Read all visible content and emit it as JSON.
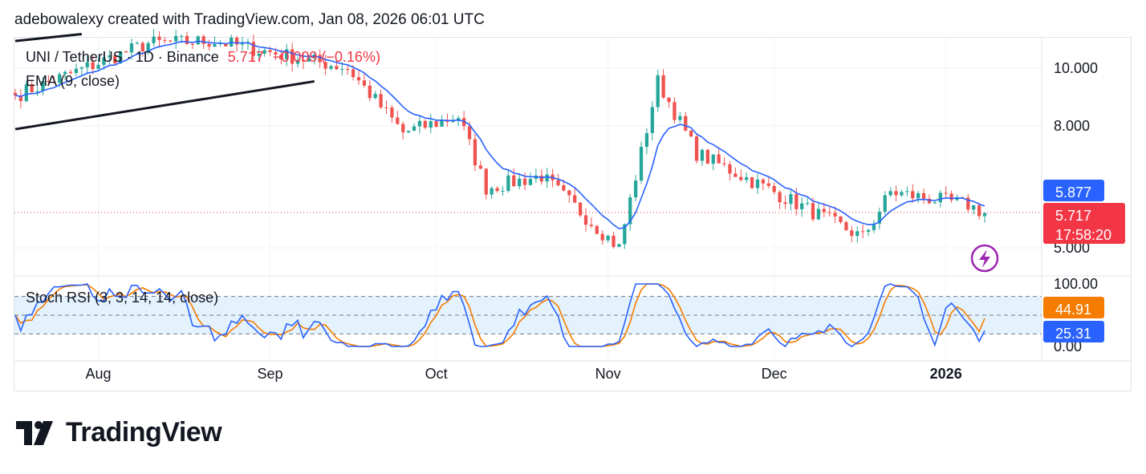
{
  "caption": "adebowalexy created with TradingView.com, Jan 08, 2026 06:01 UTC",
  "legend": {
    "symbol": "UNI / TetherUS · 1D · Binance",
    "last": "5.717",
    "change": "−0.009 (−0.16%)",
    "ema_label": "EMA (9, close)",
    "stoch_label": "Stoch RSI (3, 3, 14, 14, close)"
  },
  "price_axis": {
    "ticks": [
      "10.000",
      "8.000",
      "5.000"
    ],
    "ema_badge": "5.877",
    "price_badge": "5.717",
    "countdown": "17:58:20"
  },
  "stoch_axis": {
    "ticks": [
      "100.00",
      "0.00"
    ],
    "d_badge": "44.91",
    "k_badge": "25.31"
  },
  "time_axis": [
    "Aug",
    "Sep",
    "Oct",
    "Nov",
    "Dec",
    "2026"
  ],
  "brand": "TradingView",
  "colors": {
    "up": "#26a69a",
    "down": "#ef5350",
    "ema": "#2962ff",
    "stoch_k": "#2962ff",
    "stoch_d": "#f57c00",
    "band": "#e3f2fd",
    "ema_badge": "#2962ff",
    "price_badge": "#f23645",
    "d_badge": "#f57c00"
  },
  "chart_data": {
    "type": "candlestick",
    "symbol": "UNI / TetherUS",
    "interval": "1D",
    "exchange": "Binance",
    "log_scale": true,
    "y_ticks": [
      10.0,
      8.0,
      5.0
    ],
    "x_ticks": [
      "Aug",
      "Sep",
      "Oct",
      "Nov",
      "Dec",
      "2026"
    ],
    "last_price": 5.717,
    "ema_last": 5.877,
    "trend_line": {
      "from": {
        "date": "2025-07-17",
        "price": 7.9
      },
      "to": {
        "date": "2025-09-09",
        "price": 9.5
      }
    },
    "trend_line_upper": {
      "from": {
        "date": "2025-07-17",
        "price": 11.1
      },
      "to": {
        "date": "2025-07-29",
        "price": 11.4
      }
    },
    "key_points": [
      {
        "date": "2025-07-17",
        "close": 9.0
      },
      {
        "date": "2025-08-10",
        "close": 11.0
      },
      {
        "date": "2025-08-22",
        "close": 11.1
      },
      {
        "date": "2025-09-15",
        "close": 10.0
      },
      {
        "date": "2025-09-25",
        "close": 7.8
      },
      {
        "date": "2025-10-05",
        "close": 8.3
      },
      {
        "date": "2025-10-10",
        "close": 6.3
      },
      {
        "date": "2025-10-20",
        "close": 6.6
      },
      {
        "date": "2025-11-03",
        "close": 5.0
      },
      {
        "date": "2025-11-10",
        "close": 9.5
      },
      {
        "date": "2025-11-17",
        "close": 7.2
      },
      {
        "date": "2025-12-01",
        "close": 6.2
      },
      {
        "date": "2025-12-17",
        "close": 5.2
      },
      {
        "date": "2025-12-22",
        "close": 6.2
      },
      {
        "date": "2026-01-05",
        "close": 5.9
      },
      {
        "date": "2026-01-08",
        "close": 5.717
      }
    ],
    "stoch_rsi": {
      "k_last": 25.31,
      "d_last": 44.91,
      "range": [
        0,
        100
      ],
      "band": [
        20,
        80
      ]
    }
  }
}
